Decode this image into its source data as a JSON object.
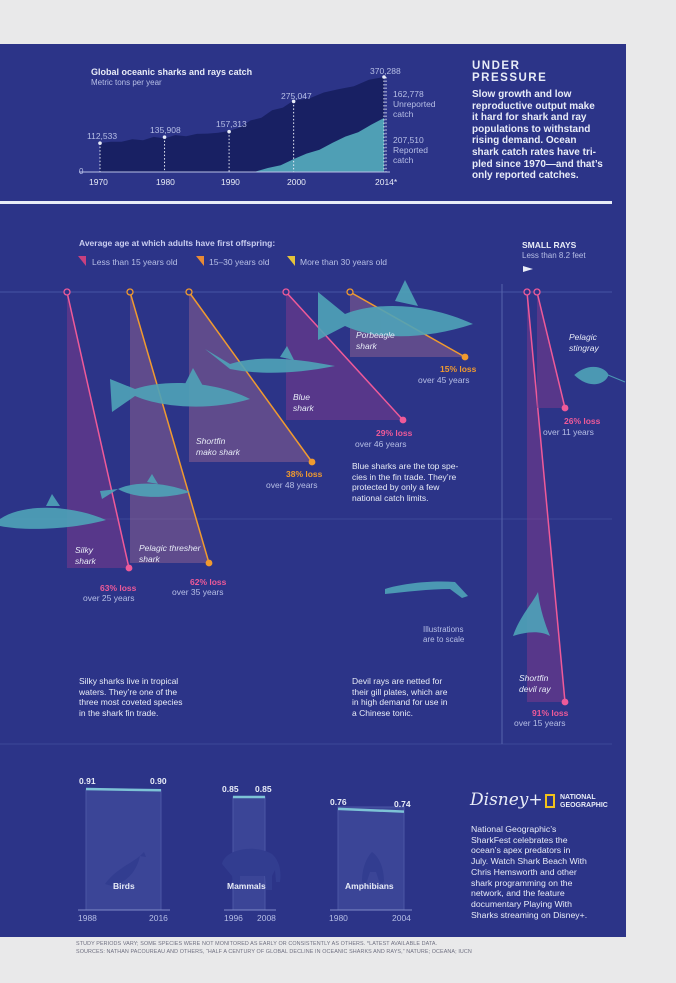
{
  "catch_chart": {
    "title": "Global oceanic sharks and rays catch",
    "subtitle": "Metric tons per year",
    "zero_label": "0",
    "x_ticks": [
      "1970",
      "1980",
      "1990",
      "2000",
      "2014*"
    ],
    "value_labels": [
      "112,533",
      "135,908",
      "157,313",
      "275,047",
      "370,288"
    ],
    "unreported_value": "162,778",
    "unreported_label": "Unreported catch",
    "reported_value": "207,510",
    "reported_label": "Reported catch"
  },
  "chart_data": [
    {
      "type": "area",
      "title": "Global oceanic sharks and rays catch",
      "subtitle": "Metric tons per year",
      "x": [
        1970,
        1980,
        1990,
        2000,
        2014
      ],
      "series": [
        {
          "name": "Unreported catch",
          "values": [
            112533,
            135908,
            157313,
            275047,
            162778
          ]
        },
        {
          "name": "Reported catch",
          "values": [
            null,
            null,
            null,
            null,
            207510
          ]
        }
      ],
      "totals": [
        112533,
        135908,
        157313,
        275047,
        370288
      ],
      "x_tick_labels": [
        "1970",
        "1980",
        "1990",
        "2000",
        "2014*"
      ]
    },
    {
      "type": "bar",
      "title": "Average age at which adults have first offspring",
      "categories": [
        "Silky shark",
        "Pelagic thresher shark",
        "Shortfin mako shark",
        "Blue shark",
        "Porbeagle shark",
        "Shortfin devil ray",
        "Pelagic stingray"
      ],
      "values": [
        63,
        62,
        38,
        29,
        15,
        91,
        26
      ],
      "value_labels": [
        "63% loss",
        "62% loss",
        "38% loss",
        "29% loss",
        "15% loss",
        "91% loss",
        "26% loss"
      ],
      "periods": [
        "over 25 years",
        "over 35 years",
        "over 48 years",
        "over 46 years",
        "over 45 years",
        "over 15 years",
        "over 11 years"
      ],
      "age_class": [
        "Less than 15 years old",
        "15–30 years old",
        "15–30 years old",
        "Less than 15 years old",
        "15–30 years old",
        "Less than 15 years old",
        "Less than 15 years old"
      ]
    },
    {
      "type": "line",
      "title": "",
      "series": [
        {
          "name": "Birds",
          "x": [
            "1988",
            "2016"
          ],
          "values": [
            0.91,
            0.9
          ]
        },
        {
          "name": "Mammals",
          "x": [
            "1996",
            "2008"
          ],
          "values": [
            0.85,
            0.85
          ]
        },
        {
          "name": "Amphibians",
          "x": [
            "1980",
            "2004"
          ],
          "values": [
            0.76,
            0.74
          ]
        }
      ],
      "value_labels": [
        [
          "0.91",
          "0.90"
        ],
        [
          "0.85",
          "0.85"
        ],
        [
          "0.76",
          "0.74"
        ]
      ]
    }
  ],
  "under_pressure": {
    "heading_line1": "UNDER",
    "heading_line2": "PRESSURE",
    "body": [
      "Slow growth and low",
      "reproductive output make",
      "it hard for shark and ray",
      "populations to withstand",
      "rising demand. Ocean",
      "shark catch rates have tri-",
      "pled since 1970—and that’s",
      "only reported catches."
    ]
  },
  "offspring": {
    "heading": "Average age at which adults have first offspring:",
    "legend": [
      {
        "label": "Less than 15 years old",
        "color": "#c8407f"
      },
      {
        "label": "15–30 years old",
        "color": "#e88a35"
      },
      {
        "label": "More than 30 years old",
        "color": "#e5c33a"
      }
    ],
    "small_rays_title": "SMALL RAYS",
    "small_rays_subtitle": "Less than 8.2 feet",
    "scale_note_1": "Illustrations",
    "scale_note_2": "are to scale"
  },
  "species": [
    {
      "name1": "Silky",
      "name2": "shark",
      "loss": "63% loss",
      "period": "over 25 years",
      "color": "#ef5a99"
    },
    {
      "name1": "Pelagic thresher",
      "name2": "shark",
      "loss": "62% loss",
      "period": "over 35 years",
      "color": "#ef5a99"
    },
    {
      "name1": "Shortfin",
      "name2": "mako shark",
      "loss": "38% loss",
      "period": "over 48 years",
      "color": "#f09a2f"
    },
    {
      "name1": "Blue",
      "name2": "shark",
      "loss": "29% loss",
      "period": "over 46 years",
      "color": "#ef5a99"
    },
    {
      "name1": "Porbeagle",
      "name2": "shark",
      "loss": "15% loss",
      "period": "over 45 years",
      "color": "#f09a2f"
    },
    {
      "name1": "Shortfin",
      "name2": "devil ray",
      "loss": "91% loss",
      "period": "over 15 years",
      "color": "#ef5a99"
    },
    {
      "name1": "Pelagic",
      "name2": "stingray",
      "loss": "26% loss",
      "period": "over 11 years",
      "color": "#ef5a99"
    }
  ],
  "notes": {
    "blue": [
      "Blue sharks are the top spe-",
      "cies in the fin trade. They’re",
      "protected by only a few",
      "national catch limits."
    ],
    "silky": [
      "Silky sharks live in tropical",
      "waters. They’re one of the",
      "three most coveted species",
      "in the shark fin trade."
    ],
    "devil": [
      "Devil rays are netted for",
      "their gill plates, which are",
      "in high demand for use in",
      "a Chinese tonic."
    ]
  },
  "comparison": [
    {
      "label": "Birds",
      "v_start": "0.91",
      "v_end": "0.90",
      "y_start": "1988",
      "y_end": "2016"
    },
    {
      "label": "Mammals",
      "v_start": "0.85",
      "v_end": "0.85",
      "y_start": "1996",
      "y_end": "2008"
    },
    {
      "label": "Amphibians",
      "v_start": "0.76",
      "v_end": "0.74",
      "y_start": "1980",
      "y_end": "2004"
    }
  ],
  "promo": {
    "disney_logo": "Disney+",
    "natgeo_logo_1": "NATIONAL",
    "natgeo_logo_2": "GEOGRAPHIC",
    "lines": [
      "National Geographic’s",
      "SharkFest celebrates the",
      "ocean’s apex predators in",
      "July. Watch Shark Beach With",
      "Chris Hemsworth and other",
      "shark programming on the",
      "network, and the feature",
      "documentary Playing With",
      "Sharks streaming on Disney+."
    ]
  },
  "footer": {
    "line1": "STUDY PERIODS VARY; SOME SPECIES WERE NOT MONITORED AS EARLY OR CONSISTENTLY AS OTHERS. *LATEST AVAILABLE DATA.",
    "line2": "SOURCES: NATHAN PACOUREAU AND OTHERS, “HALF A CENTURY OF GLOBAL DECLINE IN OCEANIC SHARKS AND RAYS,” NATURE; OCEANA; IUCN"
  },
  "colors": {
    "panel": "#2c3488",
    "pink": "#ef5a99",
    "orange": "#f09a2f",
    "teal": "#4f9fb5",
    "navy": "#182063"
  }
}
